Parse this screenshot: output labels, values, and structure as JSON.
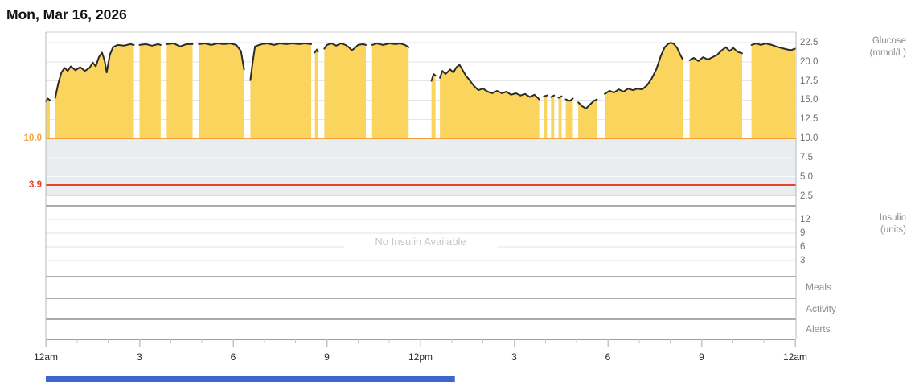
{
  "title": "Mon, Mar 16, 2026",
  "glucose_panel": {
    "axis_title_line1": "Glucose",
    "axis_title_line2": "(mmol/L)",
    "tick_labels": [
      "22.5",
      "20.0",
      "17.5",
      "15.0",
      "12.5",
      "10.0",
      "7.5",
      "5.0",
      "2.5"
    ],
    "high_threshold_label": "10.0",
    "low_threshold_label": "3.9"
  },
  "insulin_panel": {
    "axis_title_line1": "Insulin",
    "axis_title_line2": "(units)",
    "tick_labels": [
      "12",
      "9",
      "6",
      "3"
    ],
    "empty_message": "No Insulin Available"
  },
  "event_rows": {
    "meals_label": "Meals",
    "activity_label": "Activity",
    "alerts_label": "Alerts"
  },
  "x_axis": {
    "tick_labels": [
      "12am",
      "3",
      "6",
      "9",
      "12pm",
      "3",
      "6",
      "9",
      "12am"
    ],
    "tick_hours": [
      0,
      3,
      6,
      9,
      12,
      15,
      18,
      21,
      24
    ]
  },
  "colors": {
    "glucose_fill": "#FBD45E",
    "glucose_line": "#2B2B2B",
    "high_threshold": "#F2A23C",
    "high_threshold_text": "#F5A43C",
    "low_threshold": "#E8432F",
    "target_band": "#E9EDF0",
    "band_gridline": "#FAFBFC",
    "gridline": "#E6E6E6",
    "divider": "#ABABAB",
    "axis_line": "#9E9E9E",
    "tick_mark": "#C4C4C4",
    "scrollbar": "#3E66D0"
  },
  "scrollbar": {
    "start_hour": 0,
    "end_hour": 13.1
  },
  "chart_data": {
    "type": "area",
    "title": "Mon, Mar 16, 2026",
    "ylabel": "Glucose (mmol/L)",
    "y_range_mmol": [
      2.5,
      22.5
    ],
    "y_tick_step": 2.5,
    "x_range_hours": [
      0,
      24
    ],
    "x_major_tick_hours": 3,
    "x_minor_tick_hours": 1,
    "high_threshold_mmol": 10.0,
    "low_threshold_mmol": 3.9,
    "insulin_y_ticks": [
      12,
      9,
      6,
      3
    ],
    "insulin_series": [],
    "glucose_segments_hour_mmol": [
      [
        [
          0,
          14.8
        ],
        [
          0.06,
          15.2
        ],
        [
          0.13,
          15.0
        ]
      ],
      [
        [
          0.3,
          15.3
        ],
        [
          0.4,
          17.2
        ],
        [
          0.5,
          18.6
        ],
        [
          0.6,
          19.2
        ],
        [
          0.7,
          18.8
        ],
        [
          0.8,
          19.4
        ],
        [
          0.95,
          18.9
        ],
        [
          1.1,
          19.3
        ],
        [
          1.25,
          18.8
        ],
        [
          1.4,
          19.2
        ],
        [
          1.5,
          19.9
        ],
        [
          1.6,
          19.4
        ],
        [
          1.7,
          20.6
        ],
        [
          1.8,
          21.2
        ],
        [
          1.88,
          20.2
        ],
        [
          1.95,
          18.6
        ],
        [
          2.05,
          20.9
        ],
        [
          2.15,
          21.9
        ],
        [
          2.3,
          22.2
        ],
        [
          2.5,
          22.1
        ],
        [
          2.7,
          22.3
        ],
        [
          2.82,
          22.2
        ]
      ],
      [
        [
          3.0,
          22.2
        ],
        [
          3.2,
          22.3
        ],
        [
          3.4,
          22.1
        ],
        [
          3.6,
          22.3
        ],
        [
          3.68,
          22.2
        ]
      ],
      [
        [
          3.87,
          22.3
        ],
        [
          4.1,
          22.4
        ],
        [
          4.3,
          22.0
        ],
        [
          4.5,
          22.3
        ],
        [
          4.7,
          22.3
        ]
      ],
      [
        [
          4.9,
          22.3
        ],
        [
          5.1,
          22.4
        ],
        [
          5.3,
          22.2
        ],
        [
          5.5,
          22.4
        ],
        [
          5.7,
          22.3
        ],
        [
          5.9,
          22.4
        ],
        [
          6.1,
          22.2
        ],
        [
          6.25,
          21.4
        ],
        [
          6.35,
          19.0
        ]
      ],
      [
        [
          6.55,
          17.6
        ],
        [
          6.62,
          19.8
        ],
        [
          6.7,
          22.0
        ],
        [
          6.9,
          22.3
        ],
        [
          7.1,
          22.4
        ],
        [
          7.3,
          22.2
        ],
        [
          7.5,
          22.4
        ],
        [
          7.7,
          22.3
        ],
        [
          7.9,
          22.4
        ],
        [
          8.1,
          22.3
        ],
        [
          8.3,
          22.4
        ],
        [
          8.5,
          22.3
        ]
      ],
      [
        [
          8.62,
          21.2
        ],
        [
          8.68,
          21.6
        ],
        [
          8.72,
          21.3
        ]
      ],
      [
        [
          8.92,
          21.7
        ],
        [
          9.0,
          22.2
        ],
        [
          9.15,
          22.4
        ],
        [
          9.3,
          22.1
        ],
        [
          9.45,
          22.4
        ],
        [
          9.6,
          22.2
        ],
        [
          9.7,
          21.9
        ],
        [
          9.8,
          21.5
        ],
        [
          9.9,
          21.8
        ],
        [
          10.0,
          22.2
        ],
        [
          10.15,
          22.3
        ],
        [
          10.25,
          22.2
        ]
      ],
      [
        [
          10.45,
          22.2
        ],
        [
          10.6,
          22.4
        ],
        [
          10.8,
          22.2
        ],
        [
          11.0,
          22.4
        ],
        [
          11.2,
          22.3
        ],
        [
          11.35,
          22.4
        ],
        [
          11.5,
          22.2
        ],
        [
          11.62,
          21.9
        ]
      ],
      [
        [
          12.35,
          17.5
        ],
        [
          12.42,
          18.4
        ],
        [
          12.48,
          18.2
        ]
      ],
      [
        [
          12.62,
          17.9
        ],
        [
          12.7,
          18.8
        ],
        [
          12.8,
          18.4
        ],
        [
          12.95,
          19.0
        ],
        [
          13.05,
          18.6
        ],
        [
          13.15,
          19.3
        ],
        [
          13.25,
          19.6
        ],
        [
          13.35,
          18.9
        ],
        [
          13.45,
          18.2
        ],
        [
          13.55,
          17.7
        ],
        [
          13.7,
          16.9
        ],
        [
          13.85,
          16.3
        ],
        [
          14.0,
          16.5
        ],
        [
          14.15,
          16.1
        ],
        [
          14.3,
          15.9
        ],
        [
          14.45,
          16.2
        ],
        [
          14.6,
          15.9
        ],
        [
          14.75,
          16.1
        ],
        [
          14.9,
          15.7
        ],
        [
          15.05,
          15.9
        ],
        [
          15.2,
          15.6
        ],
        [
          15.35,
          15.8
        ],
        [
          15.5,
          15.4
        ],
        [
          15.65,
          15.7
        ],
        [
          15.8,
          15.1
        ]
      ],
      [
        [
          15.95,
          15.5
        ],
        [
          16.05,
          15.6
        ]
      ],
      [
        [
          16.18,
          15.4
        ],
        [
          16.28,
          15.6
        ]
      ],
      [
        [
          16.42,
          15.3
        ],
        [
          16.52,
          15.5
        ]
      ],
      [
        [
          16.65,
          15.1
        ],
        [
          16.78,
          14.9
        ],
        [
          16.88,
          15.2
        ]
      ],
      [
        [
          17.05,
          14.7
        ],
        [
          17.18,
          14.2
        ],
        [
          17.3,
          13.9
        ],
        [
          17.42,
          14.4
        ],
        [
          17.55,
          14.9
        ],
        [
          17.65,
          15.1
        ]
      ],
      [
        [
          17.9,
          15.8
        ],
        [
          18.05,
          16.2
        ],
        [
          18.2,
          16.0
        ],
        [
          18.35,
          16.4
        ],
        [
          18.5,
          16.1
        ],
        [
          18.65,
          16.5
        ],
        [
          18.8,
          16.3
        ],
        [
          18.95,
          16.5
        ],
        [
          19.1,
          16.4
        ],
        [
          19.25,
          16.9
        ],
        [
          19.4,
          17.8
        ],
        [
          19.55,
          19.0
        ],
        [
          19.7,
          20.8
        ],
        [
          19.82,
          21.9
        ],
        [
          19.92,
          22.3
        ],
        [
          20.02,
          22.5
        ],
        [
          20.12,
          22.3
        ],
        [
          20.22,
          21.8
        ],
        [
          20.32,
          20.9
        ],
        [
          20.4,
          20.3
        ]
      ],
      [
        [
          20.62,
          20.2
        ],
        [
          20.75,
          20.5
        ],
        [
          20.9,
          20.1
        ],
        [
          21.05,
          20.6
        ],
        [
          21.2,
          20.3
        ],
        [
          21.35,
          20.6
        ],
        [
          21.5,
          20.9
        ],
        [
          21.65,
          21.5
        ],
        [
          21.78,
          21.9
        ],
        [
          21.9,
          21.4
        ],
        [
          22.02,
          21.8
        ],
        [
          22.15,
          21.3
        ],
        [
          22.3,
          21.1
        ]
      ],
      [
        [
          22.6,
          22.2
        ],
        [
          22.75,
          22.4
        ],
        [
          22.9,
          22.2
        ],
        [
          23.05,
          22.4
        ],
        [
          23.25,
          22.2
        ],
        [
          23.45,
          21.9
        ],
        [
          23.65,
          21.7
        ],
        [
          23.85,
          21.5
        ],
        [
          24.0,
          21.7
        ]
      ]
    ]
  }
}
